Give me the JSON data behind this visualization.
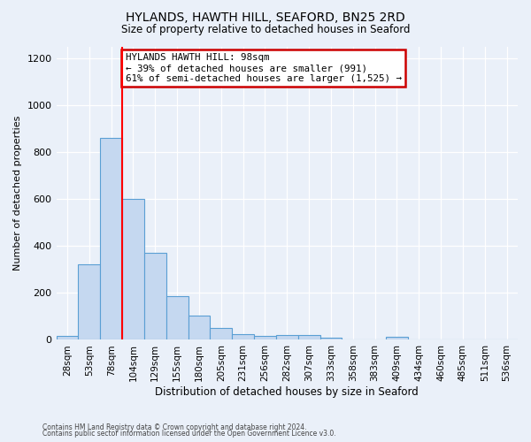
{
  "title": "HYLANDS, HAWTH HILL, SEAFORD, BN25 2RD",
  "subtitle": "Size of property relative to detached houses in Seaford",
  "xlabel": "Distribution of detached houses by size in Seaford",
  "ylabel": "Number of detached properties",
  "categories": [
    "28sqm",
    "53sqm",
    "78sqm",
    "104sqm",
    "129sqm",
    "155sqm",
    "180sqm",
    "205sqm",
    "231sqm",
    "256sqm",
    "282sqm",
    "307sqm",
    "333sqm",
    "358sqm",
    "383sqm",
    "409sqm",
    "434sqm",
    "460sqm",
    "485sqm",
    "511sqm",
    "536sqm"
  ],
  "values": [
    15,
    320,
    860,
    600,
    370,
    185,
    105,
    50,
    25,
    15,
    20,
    20,
    10,
    0,
    0,
    12,
    0,
    0,
    0,
    0,
    0
  ],
  "bar_color": "#c5d8f0",
  "bar_edge_color": "#5a9fd4",
  "red_line_index": 3,
  "annotation_text": "HYLANDS HAWTH HILL: 98sqm\n← 39% of detached houses are smaller (991)\n61% of semi-detached houses are larger (1,525) →",
  "annotation_box_color": "#ffffff",
  "annotation_box_edge_color": "#cc0000",
  "footnote1": "Contains HM Land Registry data © Crown copyright and database right 2024.",
  "footnote2": "Contains public sector information licensed under the Open Government Licence v3.0.",
  "background_color": "#eaf0f9",
  "ylim": [
    0,
    1250
  ],
  "yticks": [
    0,
    200,
    400,
    600,
    800,
    1000,
    1200
  ]
}
